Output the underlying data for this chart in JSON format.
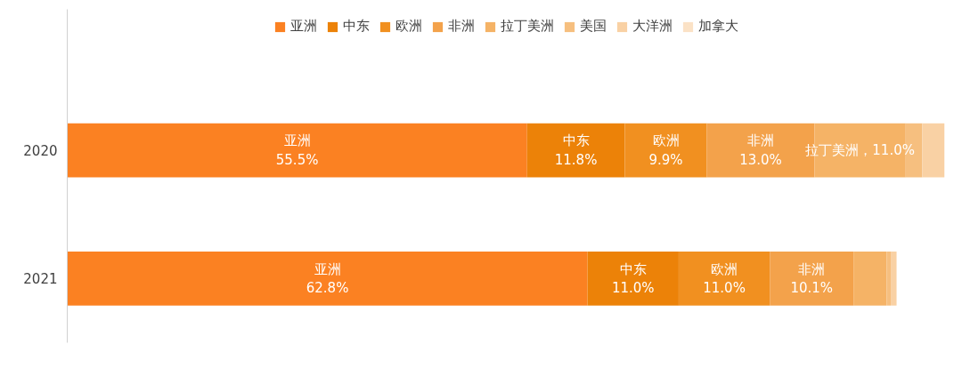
{
  "chart_data": {
    "type": "bar",
    "orientation": "horizontal",
    "stacked": true,
    "categories": [
      "2020",
      "2021"
    ],
    "legend": "top",
    "grid": false,
    "series": [
      {
        "name": "亚洲",
        "color": "#fb8122",
        "values": [
          55.5,
          62.8
        ],
        "value_labels": [
          "亚洲\n55.5%",
          "亚洲\n62.8%"
        ]
      },
      {
        "name": "中东",
        "color": "#ec8208",
        "values": [
          11.8,
          11.0
        ],
        "value_labels": [
          "中东\n11.8%",
          "中东\n11.0%"
        ]
      },
      {
        "name": "欧洲",
        "color": "#f19020",
        "values": [
          9.9,
          11.0
        ],
        "value_labels": [
          "欧洲\n9.9%",
          "欧洲\n11.0%"
        ]
      },
      {
        "name": "非洲",
        "color": "#f3a24b",
        "values": [
          13.0,
          10.1
        ],
        "value_labels": [
          "非洲\n13.0%",
          "非洲\n10.1%"
        ]
      },
      {
        "name": "拉丁美洲",
        "color": "#f5b366",
        "values": [
          11.0,
          4.0
        ],
        "value_labels": [
          "拉丁美洲，11.0%",
          null
        ]
      },
      {
        "name": "美国",
        "color": "#f6bf7f",
        "values": [
          2.0,
          0.5
        ],
        "value_labels": [
          null,
          null
        ]
      },
      {
        "name": "大洋洲",
        "color": "#f9d1a4",
        "values": [
          2.7,
          0.7
        ],
        "value_labels": [
          null,
          null
        ]
      },
      {
        "name": "加拿大",
        "color": "#fbe2c6",
        "values": [
          null,
          null
        ],
        "value_labels": [
          null,
          null
        ]
      }
    ]
  }
}
